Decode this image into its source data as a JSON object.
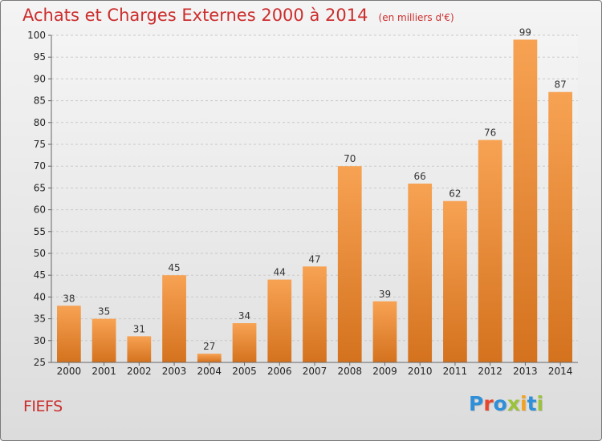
{
  "chart_data": {
    "type": "bar",
    "title": "Achats et Charges Externes 2000 à 2014",
    "subtitle": "(en milliers d'€)",
    "categories": [
      "2000",
      "2001",
      "2002",
      "2003",
      "2004",
      "2005",
      "2006",
      "2007",
      "2008",
      "2009",
      "2010",
      "2011",
      "2012",
      "2013",
      "2014"
    ],
    "values": [
      38,
      35,
      31,
      45,
      27,
      34,
      44,
      47,
      70,
      39,
      66,
      62,
      76,
      99,
      87
    ],
    "ylim": [
      25,
      100
    ],
    "yticks": [
      25,
      30,
      35,
      40,
      45,
      50,
      55,
      60,
      65,
      70,
      75,
      80,
      85,
      90,
      95,
      100
    ],
    "grid": true,
    "data_labels": true,
    "bar_color_top": "#f7a253",
    "bar_color_bottom": "#d4721e"
  },
  "footer": {
    "commune": "FIEFS",
    "logo": {
      "text": "Proxiti",
      "letters": [
        {
          "ch": "P",
          "color": "#2f8fd8"
        },
        {
          "ch": "r",
          "color": "#e8452d"
        },
        {
          "ch": "o",
          "color": "#2f8fd8"
        },
        {
          "ch": "x",
          "color": "#9bc23a"
        },
        {
          "ch": "i",
          "color": "#f3a21f"
        },
        {
          "ch": "t",
          "color": "#2f8fd8"
        },
        {
          "ch": "i",
          "color": "#9bc23a"
        }
      ]
    }
  }
}
